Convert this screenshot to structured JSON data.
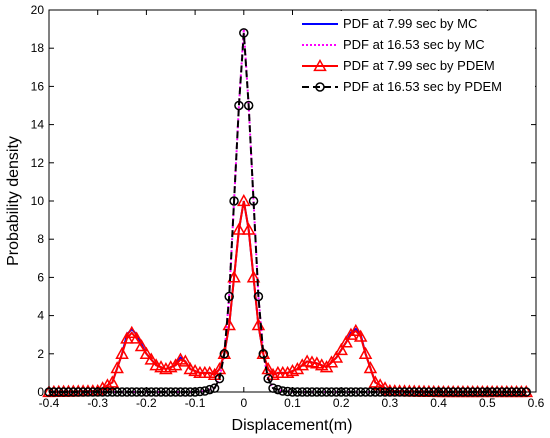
{
  "chart_data": {
    "type": "line",
    "xlabel": "Displacement(m)",
    "ylabel": "Probability density",
    "xlim": [
      -0.4,
      0.6
    ],
    "ylim": [
      0,
      20
    ],
    "xticks": [
      "-0.4",
      "-0.3",
      "-0.2",
      "-0.1",
      "0",
      "0.1",
      "0.2",
      "0.3",
      "0.4",
      "0.5",
      "0.6"
    ],
    "yticks": [
      "0",
      "2",
      "4",
      "6",
      "8",
      "10",
      "12",
      "14",
      "16",
      "18",
      "20"
    ],
    "grid": false,
    "legend_position": "top-right",
    "series": [
      {
        "name": "PDF at 7.99 sec by MC",
        "color": "#0000ff",
        "style": "solid",
        "marker": "none",
        "x": [
          -0.4,
          -0.3,
          -0.27,
          -0.25,
          -0.24,
          -0.23,
          -0.22,
          -0.2,
          -0.18,
          -0.16,
          -0.14,
          -0.13,
          -0.12,
          -0.11,
          -0.09,
          -0.07,
          -0.06,
          -0.05,
          -0.04,
          -0.03,
          -0.02,
          -0.01,
          0.0,
          0.01,
          0.02,
          0.03,
          0.04,
          0.05,
          0.06,
          0.07,
          0.09,
          0.11,
          0.13,
          0.15,
          0.17,
          0.19,
          0.21,
          0.22,
          0.23,
          0.24,
          0.25,
          0.27,
          0.3,
          0.4,
          0.58
        ],
        "y": [
          0,
          0.05,
          0.5,
          2.0,
          3.0,
          3.3,
          3.0,
          2.0,
          1.4,
          1.2,
          1.4,
          1.8,
          1.6,
          1.2,
          1.0,
          1.0,
          0.9,
          1.2,
          2.0,
          3.5,
          6.0,
          8.5,
          10.0,
          8.5,
          6.0,
          3.5,
          2.0,
          1.2,
          0.9,
          1.0,
          1.0,
          1.2,
          1.6,
          1.5,
          1.3,
          1.8,
          2.6,
          3.1,
          3.3,
          3.0,
          2.0,
          0.5,
          0.05,
          0,
          0
        ]
      },
      {
        "name": "PDF at 16.53 sec by MC",
        "color": "#ff00ff",
        "style": "dotted",
        "marker": "none",
        "x": [
          -0.4,
          -0.1,
          -0.08,
          -0.06,
          -0.05,
          -0.04,
          -0.03,
          -0.02,
          -0.01,
          0.0,
          0.01,
          0.02,
          0.03,
          0.04,
          0.05,
          0.06,
          0.08,
          0.1,
          0.58
        ],
        "y": [
          0,
          0,
          0.05,
          0.2,
          0.7,
          2.0,
          5.0,
          10.0,
          15.0,
          19.0,
          15.0,
          10.0,
          5.0,
          2.0,
          0.7,
          0.2,
          0.05,
          0,
          0
        ]
      },
      {
        "name": "PDF at 7.99 sec by PDEM",
        "color": "#ff0000",
        "style": "solid",
        "marker": "triangle",
        "x": [
          -0.4,
          -0.3,
          -0.27,
          -0.25,
          -0.24,
          -0.23,
          -0.22,
          -0.2,
          -0.18,
          -0.16,
          -0.14,
          -0.13,
          -0.12,
          -0.11,
          -0.09,
          -0.07,
          -0.06,
          -0.05,
          -0.04,
          -0.03,
          -0.02,
          -0.01,
          0.0,
          0.01,
          0.02,
          0.03,
          0.04,
          0.05,
          0.06,
          0.07,
          0.09,
          0.11,
          0.13,
          0.15,
          0.17,
          0.19,
          0.21,
          0.22,
          0.23,
          0.24,
          0.25,
          0.27,
          0.3,
          0.4,
          0.58
        ],
        "y": [
          0,
          0.05,
          0.5,
          2.0,
          2.8,
          3.1,
          2.8,
          2.0,
          1.4,
          1.2,
          1.4,
          1.7,
          1.6,
          1.2,
          1.0,
          1.0,
          0.9,
          1.2,
          2.0,
          3.5,
          6.0,
          8.5,
          10.0,
          8.5,
          6.0,
          3.5,
          2.0,
          1.2,
          0.9,
          1.0,
          1.0,
          1.2,
          1.6,
          1.5,
          1.3,
          1.8,
          2.6,
          3.0,
          3.2,
          2.9,
          2.0,
          0.5,
          0.05,
          0,
          0
        ]
      },
      {
        "name": "PDF at 16.53 sec by PDEM",
        "color": "#000000",
        "style": "dashed",
        "marker": "circle",
        "x": [
          -0.4,
          -0.1,
          -0.08,
          -0.06,
          -0.05,
          -0.04,
          -0.03,
          -0.02,
          -0.01,
          0.0,
          0.01,
          0.02,
          0.03,
          0.04,
          0.05,
          0.06,
          0.08,
          0.1,
          0.58
        ],
        "y": [
          0,
          0,
          0.05,
          0.2,
          0.7,
          2.0,
          5.0,
          10.0,
          15.0,
          18.8,
          15.0,
          10.0,
          5.0,
          2.0,
          0.7,
          0.2,
          0.05,
          0,
          0
        ]
      }
    ]
  }
}
